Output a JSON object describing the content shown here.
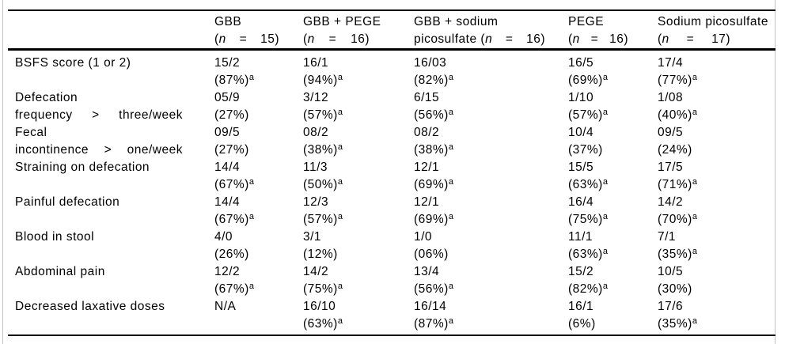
{
  "colors": {
    "background": "#ffffff",
    "text": "#000000",
    "rules": "#000000",
    "edge_lines": "#c6c6c6"
  },
  "table": {
    "header": [
      {
        "key": "row-label",
        "title_lines": [],
        "n_row": null
      },
      {
        "key": "gbb",
        "title_lines": [
          "GBB"
        ],
        "n_row": {
          "open": "(",
          "variable": "n",
          "equals": "=",
          "close": "15)"
        }
      },
      {
        "key": "gbb-pege",
        "title_lines": [
          "GBB + PEGE"
        ],
        "n_row": {
          "open": "(",
          "variable": "n",
          "equals": "=",
          "close": "16)"
        }
      },
      {
        "key": "gbb-sodium-picosulfate",
        "title_lines": [
          "GBB + sodium"
        ],
        "n_row": {
          "open": "picosulfate (",
          "variable": "n",
          "equals": "=",
          "close": "16)"
        }
      },
      {
        "key": "pege",
        "title_lines": [
          "PEGE"
        ],
        "n_row": {
          "open": "(",
          "variable": "n",
          "equals": "=",
          "close": "16)"
        }
      },
      {
        "key": "sodium-picosulfate",
        "title_lines": [
          "Sodium picosulfate"
        ],
        "n_row": {
          "open": "(",
          "variable": "n",
          "equals": "=",
          "close": "17)"
        }
      }
    ],
    "rows": [
      {
        "label_line1": "BSFS score (1 or 2)",
        "label_line2_parts": null,
        "cells": [
          {
            "count": "15/2",
            "pct": "(87%)",
            "sup": "a"
          },
          {
            "count": "16/1",
            "pct": "(94%)",
            "sup": "a"
          },
          {
            "count": "16/03",
            "pct": "(82%)",
            "sup": "a"
          },
          {
            "count": "16/5",
            "pct": "(69%)",
            "sup": "a"
          },
          {
            "count": "17/4",
            "pct": "(77%)",
            "sup": "a"
          }
        ]
      },
      {
        "label_line1": "Defecation",
        "label_line2_parts": [
          "frequency",
          ">",
          "three/week"
        ],
        "cells": [
          {
            "count": "05/9",
            "pct": "(27%)",
            "sup": ""
          },
          {
            "count": "3/12",
            "pct": "(57%)",
            "sup": "a"
          },
          {
            "count": "6/15",
            "pct": "(56%)",
            "sup": "a"
          },
          {
            "count": "1/10",
            "pct": "(57%)",
            "sup": "a"
          },
          {
            "count": "1/08",
            "pct": "(40%)",
            "sup": "a"
          }
        ]
      },
      {
        "label_line1": "Fecal",
        "label_line2_parts": [
          "incontinence",
          ">",
          "one/week"
        ],
        "cells": [
          {
            "count": "09/5",
            "pct": "(27%)",
            "sup": ""
          },
          {
            "count": "08/2",
            "pct": "(38%)",
            "sup": "a"
          },
          {
            "count": "08/2",
            "pct": "(38%)",
            "sup": "a"
          },
          {
            "count": "10/4",
            "pct": "(37%)",
            "sup": ""
          },
          {
            "count": "09/5",
            "pct": "(24%)",
            "sup": ""
          }
        ]
      },
      {
        "label_line1": "Straining on defecation",
        "label_line2_parts": null,
        "cells": [
          {
            "count": "14/4",
            "pct": "(67%)",
            "sup": "a"
          },
          {
            "count": "11/3",
            "pct": "(50%)",
            "sup": "a"
          },
          {
            "count": "12/1",
            "pct": "(69%)",
            "sup": "a"
          },
          {
            "count": "15/5",
            "pct": "(63%)",
            "sup": "a"
          },
          {
            "count": "17/5",
            "pct": "(71%)",
            "sup": "a"
          }
        ]
      },
      {
        "label_line1": "Painful defecation",
        "label_line2_parts": null,
        "cells": [
          {
            "count": "14/4",
            "pct": "(67%)",
            "sup": "a"
          },
          {
            "count": "12/3",
            "pct": "(57%)",
            "sup": "a"
          },
          {
            "count": "12/1",
            "pct": "(69%)",
            "sup": "a"
          },
          {
            "count": "16/4",
            "pct": "(75%)",
            "sup": "a"
          },
          {
            "count": "14/2",
            "pct": "(70%)",
            "sup": "a"
          }
        ]
      },
      {
        "label_line1": "Blood in stool",
        "label_line2_parts": null,
        "cells": [
          {
            "count": "4/0",
            "pct": "(26%)",
            "sup": ""
          },
          {
            "count": "3/1",
            "pct": "(12%)",
            "sup": ""
          },
          {
            "count": "1/0",
            "pct": "(06%)",
            "sup": ""
          },
          {
            "count": "11/1",
            "pct": "(63%)",
            "sup": "a"
          },
          {
            "count": "7/1",
            "pct": "(35%)",
            "sup": "a"
          }
        ]
      },
      {
        "label_line1": "Abdominal pain",
        "label_line2_parts": null,
        "cells": [
          {
            "count": "12/2",
            "pct": "(67%)",
            "sup": "a"
          },
          {
            "count": "14/2",
            "pct": "(75%)",
            "sup": "a"
          },
          {
            "count": "13/4",
            "pct": "(56%)",
            "sup": "a"
          },
          {
            "count": "15/2",
            "pct": "(82%)",
            "sup": "a"
          },
          {
            "count": "10/5",
            "pct": "(30%)",
            "sup": ""
          }
        ]
      },
      {
        "label_line1": "Decreased laxative doses",
        "label_line2_parts": null,
        "cells": [
          {
            "count": "N/A",
            "pct": "",
            "sup": ""
          },
          {
            "count": "16/10",
            "pct": "(63%)",
            "sup": "a"
          },
          {
            "count": "16/14",
            "pct": "(87%)",
            "sup": "a"
          },
          {
            "count": "16/1",
            "pct": "(6%)",
            "sup": ""
          },
          {
            "count": "17/6",
            "pct": "(35%)",
            "sup": "a"
          }
        ]
      }
    ]
  }
}
